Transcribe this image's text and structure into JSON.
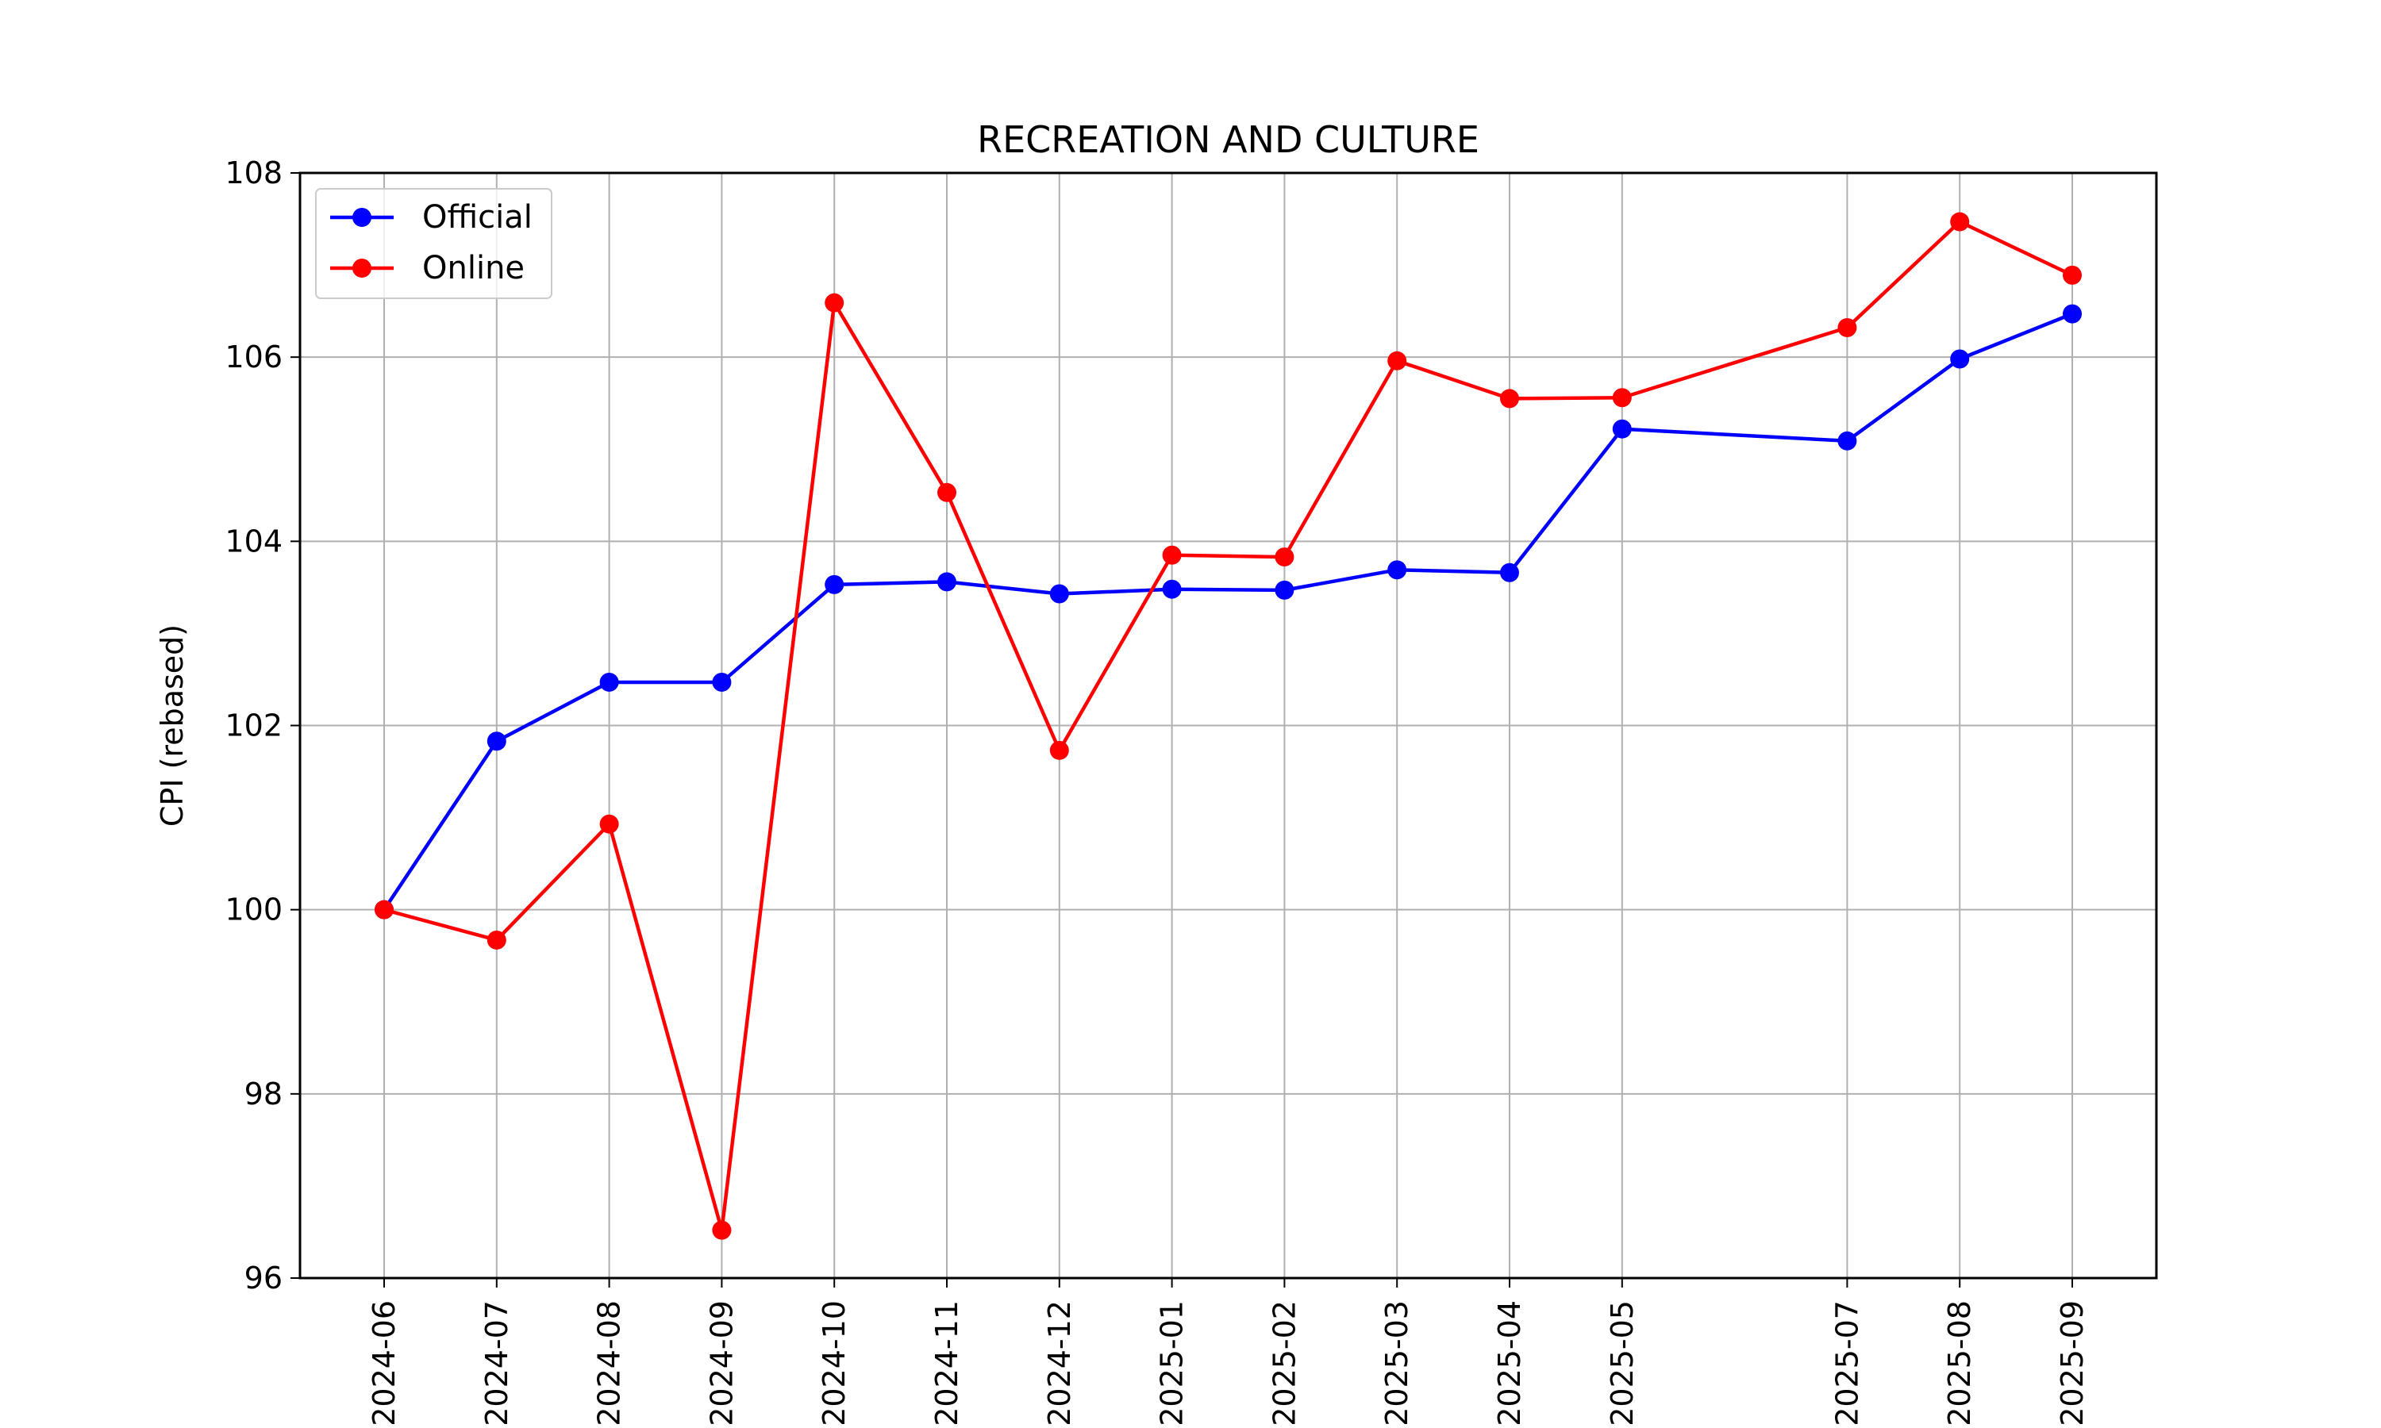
{
  "chart_data": {
    "type": "line",
    "title": "RECREATION AND CULTURE",
    "xlabel": "",
    "ylabel": "CPI (rebased)",
    "x": [
      "2024-06",
      "2024-07",
      "2024-08",
      "2024-09",
      "2024-10",
      "2024-11",
      "2024-12",
      "2025-01",
      "2025-02",
      "2025-03",
      "2025-04",
      "2025-05",
      "2025-07",
      "2025-08",
      "2025-09"
    ],
    "ylim": [
      96,
      108
    ],
    "yticks": [
      96,
      98,
      100,
      102,
      104,
      106,
      108
    ],
    "grid": true,
    "legend_position": "top-left",
    "series": [
      {
        "name": "Official",
        "color": "#0000ff",
        "values": [
          100.0,
          101.83,
          102.47,
          102.47,
          103.53,
          103.56,
          103.43,
          103.48,
          103.47,
          103.69,
          103.66,
          105.22,
          105.09,
          105.98,
          106.47
        ]
      },
      {
        "name": "Online",
        "color": "#ff0000",
        "values": [
          100.0,
          99.67,
          100.93,
          96.52,
          106.59,
          104.53,
          101.73,
          103.85,
          103.83,
          105.96,
          105.55,
          105.56,
          106.32,
          107.47,
          106.89
        ]
      }
    ]
  }
}
